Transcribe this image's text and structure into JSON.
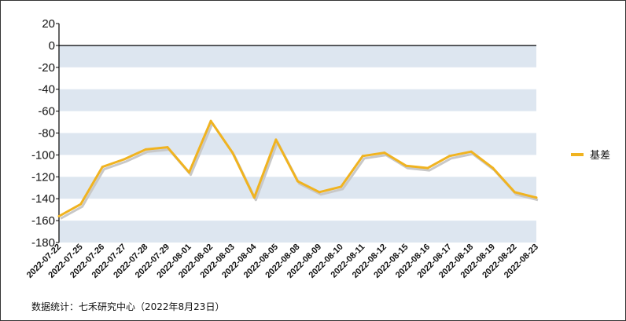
{
  "chart_data": {
    "type": "line",
    "categories": [
      "2022-07-22",
      "2022-07-25",
      "2022-07-26",
      "2022-07-27",
      "2022-07-28",
      "2022-07-29",
      "2022-08-01",
      "2022-08-02",
      "2022-08-03",
      "2022-08-04",
      "2022-08-05",
      "2022-08-08",
      "2022-08-09",
      "2022-08-10",
      "2022-08-11",
      "2022-08-12",
      "2022-08-15",
      "2022-08-16",
      "2022-08-17",
      "2022-08-18",
      "2022-08-19",
      "2022-08-22",
      "2022-08-23"
    ],
    "series": [
      {
        "name": "基差",
        "values": [
          -156,
          -145,
          -111,
          -104,
          -95,
          -93,
          -116,
          -69,
          -98,
          -139,
          -86,
          -124,
          -134,
          -129,
          -101,
          -98,
          -110,
          -112,
          -101,
          -97,
          -112,
          -134,
          -139
        ]
      }
    ],
    "title": "",
    "xlabel": "",
    "ylabel": "",
    "ylim": [
      -180,
      20
    ],
    "yticks": [
      20,
      0,
      -20,
      -40,
      -60,
      -80,
      -100,
      -120,
      -140,
      -160,
      -180
    ],
    "grid": "alternating horizontal bands",
    "legend": "right",
    "colors": {
      "line": "#f0b320",
      "shadow": "#c8c8c8",
      "band": "#dde6f0",
      "axis": "#000000"
    }
  },
  "footer": {
    "source": "数据统计：七禾研究中心（2022年8月23日）"
  }
}
